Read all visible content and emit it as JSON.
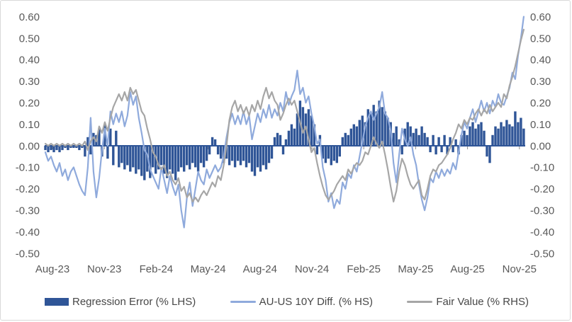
{
  "chart_data": {
    "type": "combo",
    "title": "",
    "grid": false,
    "background": "#ffffff",
    "axis_color": "#2F5597",
    "tick_color": "#8c8c8c",
    "label_color": "#595959",
    "legend_position": "bottom",
    "ylim": [
      -0.5,
      0.6
    ],
    "value_unit": 0.01,
    "y_tick_labels": [
      "0.60",
      "0.50",
      "0.40",
      "0.30",
      "0.20",
      "0.10",
      "0.00",
      "-0.10",
      "-0.20",
      "-0.30",
      "-0.40",
      "-0.50"
    ],
    "y_tick_values": [
      60,
      50,
      40,
      30,
      20,
      10,
      0,
      -10,
      -20,
      -30,
      -40,
      -50
    ],
    "x_tick_labels": [
      "Aug-23",
      "Nov-23",
      "Feb-24",
      "May-24",
      "Aug-24",
      "Nov-24",
      "Feb-25",
      "May-25",
      "Aug-25",
      "Nov-25"
    ],
    "x_tick_months": [
      0,
      3,
      6,
      9,
      12,
      15,
      18,
      21,
      24,
      27
    ],
    "x_range_months": [
      -0.41,
      27.25
    ],
    "series": [
      {
        "name": "Regression Error (% LHS)",
        "type": "bar",
        "color": "#2F5597",
        "values": [
          -2,
          -3,
          -2,
          -3,
          -2,
          -3,
          -2,
          -1,
          -2,
          -1,
          -1,
          -1,
          -2,
          -1,
          -5,
          4,
          -4,
          6,
          5,
          8,
          -5,
          10,
          -6,
          8,
          -9,
          7,
          -10,
          -8,
          -11,
          -9,
          -12,
          -10,
          -13,
          -11,
          -14,
          -16,
          -12,
          -15,
          -10,
          -13,
          -11,
          -9,
          -13,
          -15,
          -11,
          -13,
          -16,
          -12,
          -10,
          -12,
          -9,
          -11,
          -8,
          -10,
          -12,
          -8,
          -10,
          -7,
          -4,
          4,
          3,
          -4,
          -6,
          -8,
          -6,
          -9,
          -7,
          -10,
          -7,
          -9,
          -7,
          -10,
          -8,
          -12,
          -14,
          -10,
          -12,
          -9,
          -11,
          -8,
          -6,
          4,
          6,
          5,
          -4,
          3,
          7,
          10,
          8,
          15,
          21,
          18,
          15,
          17,
          14,
          10,
          -4,
          5,
          -6,
          -8,
          -6,
          -9,
          -7,
          -8,
          -5,
          4,
          6,
          5,
          8,
          10,
          9,
          12,
          14,
          11,
          17,
          15,
          19,
          16,
          21,
          18,
          16,
          13,
          11,
          6,
          9,
          3,
          -4,
          8,
          11,
          9,
          6,
          8,
          5,
          9,
          6,
          4,
          -3,
          5,
          -4,
          4,
          -3,
          5,
          -4,
          4,
          -3,
          3,
          -4,
          5,
          7,
          5,
          9,
          11,
          8,
          10,
          11,
          7,
          -5,
          -8,
          5,
          9,
          8,
          11,
          9,
          12,
          10,
          9,
          16,
          11,
          13,
          8
        ]
      },
      {
        "name": "AU-US 10Y Diff. (% HS)",
        "type": "line",
        "color": "#8FAADC",
        "values": [
          -3,
          -7,
          -5,
          -9,
          -12,
          -8,
          -14,
          -11,
          -16,
          -12,
          -10,
          -14,
          -18,
          -21,
          -23,
          -10,
          13,
          -12,
          -24,
          -15,
          -2,
          8,
          0,
          16,
          10,
          15,
          11,
          16,
          9,
          14,
          25,
          19,
          23,
          13,
          6,
          -2,
          -4,
          -11,
          -14,
          -17,
          -20,
          -10,
          -16,
          -22,
          -14,
          -19,
          -23,
          -18,
          -30,
          -38,
          -24,
          -17,
          -28,
          -20,
          -12,
          -16,
          -18,
          -11,
          -15,
          -12,
          -9,
          -12,
          -10,
          -5,
          4,
          11,
          15,
          10,
          14,
          10,
          16,
          10,
          14,
          3,
          9,
          15,
          11,
          17,
          13,
          19,
          13,
          17,
          14,
          20,
          16,
          25,
          19,
          23,
          26,
          35,
          24,
          27,
          20,
          23,
          15,
          9,
          1,
          3,
          -10,
          -16,
          -26,
          -22,
          -29,
          -25,
          -27,
          -17,
          -20,
          -13,
          -15,
          -9,
          -12,
          -5,
          2,
          9,
          13,
          16,
          12,
          15,
          18,
          25,
          15,
          13,
          7,
          -8,
          -17,
          -4,
          8,
          3,
          0,
          4,
          -4,
          -9,
          -18,
          -25,
          -30,
          -24,
          -15,
          -17,
          -12,
          -15,
          -11,
          -14,
          -11,
          -13,
          -8,
          -11,
          -3,
          5,
          11,
          8,
          13,
          17,
          11,
          16,
          21,
          16,
          20,
          15,
          21,
          18,
          24,
          20,
          19,
          23,
          27,
          34,
          31,
          42,
          50,
          60
        ]
      },
      {
        "name": "Fair Value (% RHS)",
        "type": "line",
        "color": "#A6A6A6",
        "values": [
          1,
          0,
          1,
          0,
          1,
          0,
          1,
          0,
          1,
          0,
          1,
          0,
          1,
          0,
          2,
          -2,
          2,
          4,
          2,
          9,
          6,
          11,
          7,
          13,
          18,
          21,
          24,
          21,
          25,
          21,
          27,
          24,
          26,
          21,
          16,
          14,
          8,
          3,
          -3,
          -5,
          -9,
          -11,
          -9,
          -14,
          -12,
          -16,
          -18,
          -15,
          -21,
          -19,
          -24,
          -22,
          -26,
          -24,
          -26,
          -23,
          -21,
          -23,
          -20,
          -17,
          -19,
          -14,
          -16,
          -9,
          0,
          12,
          18,
          21,
          16,
          19,
          15,
          18,
          14,
          19,
          16,
          21,
          17,
          23,
          27,
          22,
          25,
          21,
          19,
          12,
          15,
          19,
          22,
          19,
          21,
          16,
          11,
          6,
          9,
          3,
          -3,
          -1,
          -8,
          -14,
          -19,
          -23,
          -25,
          -23,
          -21,
          -18,
          -16,
          -14,
          -16,
          -11,
          -13,
          -10,
          -8,
          -9,
          -7,
          -3,
          -4,
          0,
          4,
          1,
          -1,
          2,
          -4,
          -11,
          -19,
          -26,
          -21,
          -12,
          -6,
          -9,
          -14,
          -18,
          -20,
          -18,
          -16,
          -23,
          -25,
          -20,
          -14,
          -11,
          -12,
          -9,
          -8,
          -6,
          -4,
          -1,
          3,
          6,
          10,
          8,
          12,
          10,
          13,
          12,
          15,
          17,
          14,
          17,
          15,
          19,
          16,
          18,
          20,
          18,
          24,
          22,
          28,
          32,
          37,
          43,
          49,
          54
        ]
      }
    ]
  },
  "legend": {
    "items": [
      {
        "label": "Regression Error (% LHS)"
      },
      {
        "label": "AU-US 10Y Diff. (% HS)"
      },
      {
        "label": "Fair Value (% RHS)"
      }
    ]
  }
}
